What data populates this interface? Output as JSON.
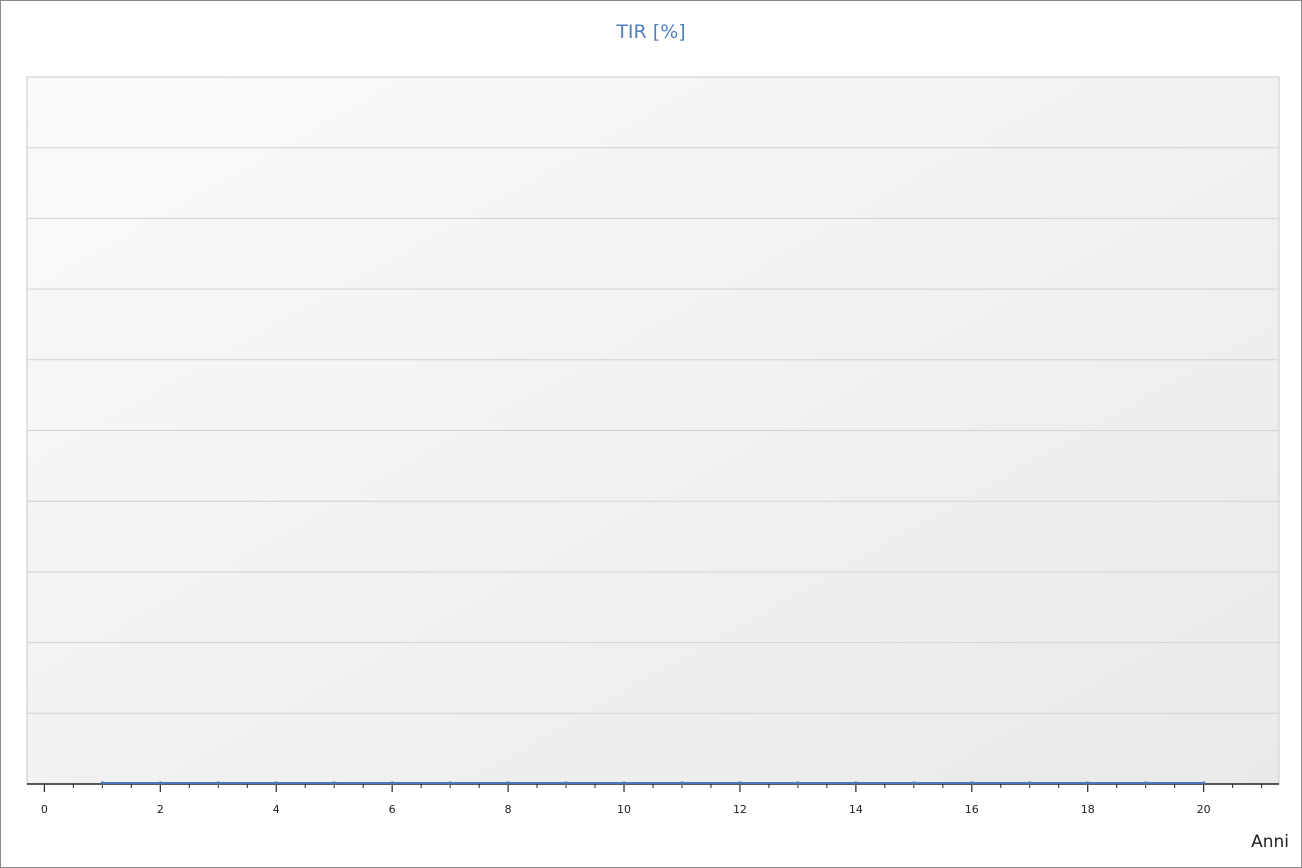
{
  "chart_data": {
    "type": "line",
    "title": "TIR [%]",
    "xlabel": "Anni",
    "ylabel": "",
    "x_ticks": [
      0,
      2,
      4,
      6,
      8,
      10,
      12,
      14,
      16,
      18,
      20
    ],
    "xlim": [
      -0.3,
      21.3
    ],
    "ylim": [
      0,
      10
    ],
    "y_gridlines": 10,
    "grid": true,
    "legend": "none",
    "series": [
      {
        "x": [
          1,
          2,
          3,
          4,
          5,
          6,
          7,
          8,
          9,
          10,
          11,
          12,
          13,
          14,
          15,
          16,
          17,
          18,
          19,
          20
        ],
        "values": [
          0,
          0,
          0,
          0,
          0,
          0,
          0,
          0,
          0,
          0,
          0,
          0,
          0,
          0,
          0,
          0,
          0,
          0,
          0,
          0
        ]
      }
    ],
    "colors": {
      "title": "#4f7fc0",
      "series": "#4a78b8",
      "grid": "#d2d2d2",
      "plot_border": "#c8c8c8",
      "axis": "#222222"
    }
  }
}
